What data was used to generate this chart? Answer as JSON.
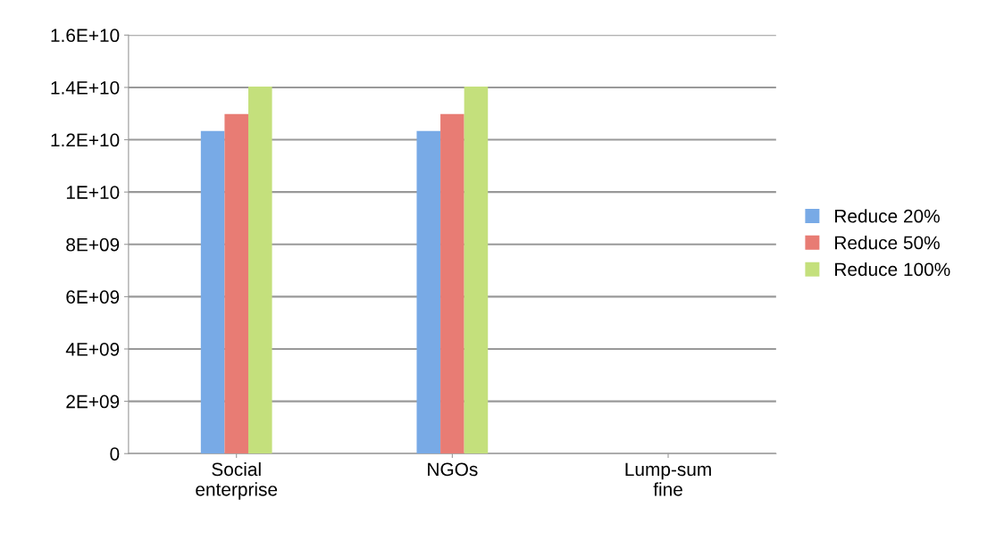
{
  "chart_data": {
    "type": "bar",
    "categories": [
      "Social\nenterprise",
      "NGOs",
      "Lump-sum\nfine"
    ],
    "series": [
      {
        "name": "Reduce 20%",
        "color": "#78aae6",
        "values": [
          12330000000,
          12330000000,
          0
        ]
      },
      {
        "name": "Reduce 50%",
        "color": "#e87c74",
        "values": [
          12980000000,
          12980000000,
          0
        ]
      },
      {
        "name": "Reduce 100%",
        "color": "#c4e07c",
        "values": [
          14030000000,
          14030000000,
          0
        ]
      }
    ],
    "ylim": [
      0,
      16000000000
    ],
    "yticks": [
      {
        "value": 0,
        "label": "0"
      },
      {
        "value": 2000000000,
        "label": "2E+09"
      },
      {
        "value": 4000000000,
        "label": "4E+09"
      },
      {
        "value": 6000000000,
        "label": "6E+09"
      },
      {
        "value": 8000000000,
        "label": "8E+09"
      },
      {
        "value": 10000000000,
        "label": "1E+10"
      },
      {
        "value": 12000000000,
        "label": "1.2E+10"
      },
      {
        "value": 14000000000,
        "label": "1.4E+10"
      },
      {
        "value": 16000000000,
        "label": "1.6E+10"
      }
    ],
    "grid": "y",
    "legend": "right"
  }
}
